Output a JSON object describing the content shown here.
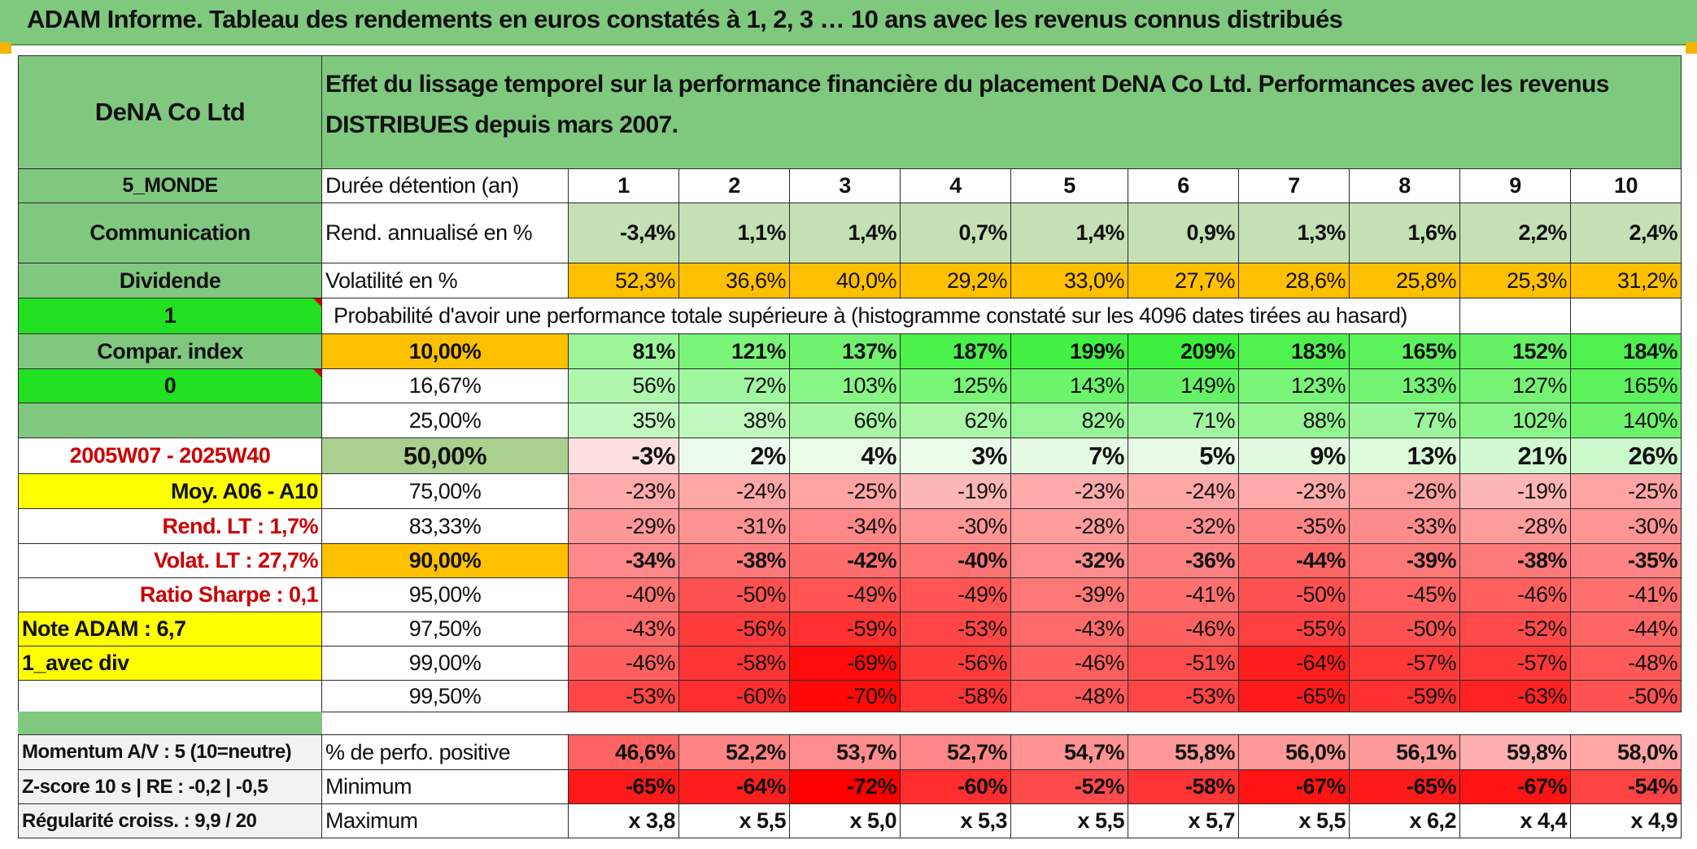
{
  "title": "ADAM Informe. Tableau des rendements en euros constatés à 1, 2, 3 … 10 ans avec les revenus connus distribués",
  "colors": {
    "header_green": "#7fc97f",
    "left_green": "#80c880",
    "bright_green": "#22e022",
    "yellow": "#ffff00",
    "orange": "#ffc000",
    "light_green_row": "#c5e0b4",
    "median_green": "#a9d08e",
    "label_red": "#cc0000"
  },
  "left_panel": {
    "company": "DeNA Co Ltd",
    "region": "5_MONDE",
    "sector": "Communication",
    "dividend_label": "Dividende",
    "dividend_value": "1",
    "compar_label": "Compar. index",
    "compar_value": "0",
    "period": "2005W07 - 2025W40",
    "moy": "Moy. A06 - A10",
    "rend_lt": "Rend. LT :   1,7%",
    "volat_lt": "Volat. LT :   27,7%",
    "sharpe": "Ratio Sharpe :    0,1",
    "note": "Note ADAM : 6,7",
    "avec_div": "1_avec div",
    "momentum": "Momentum A/V : 5 (10=neutre)",
    "zscore": "Z-score 10 s | RE : -0,2 | -0,5",
    "regularite": "Régularité croiss. : 9,9 / 20"
  },
  "header_description": "Effet du lissage temporel sur la performance financière du placement DeNA Co Ltd. Performances avec les revenus DISTRIBUES depuis mars 2007.",
  "duration_label": "Durée détention (an)",
  "durations": [
    "1",
    "2",
    "3",
    "4",
    "5",
    "6",
    "7",
    "8",
    "9",
    "10"
  ],
  "rend_label": "Rend. annualisé en %",
  "rend_values": [
    "-3,4%",
    "1,1%",
    "1,4%",
    "0,7%",
    "1,4%",
    "0,9%",
    "1,3%",
    "1,6%",
    "2,2%",
    "2,4%"
  ],
  "vol_label": "Volatilité en %",
  "vol_values": [
    "52,3%",
    "36,6%",
    "40,0%",
    "29,2%",
    "33,0%",
    "27,7%",
    "28,6%",
    "25,8%",
    "25,3%",
    "31,2%"
  ],
  "prob_label": "Probabilité d'avoir une performance totale supérieure à (histogramme constaté sur les 4096 dates tirées au hasard)",
  "percentile_rows": [
    {
      "p": "10,00%",
      "v": [
        "81%",
        "121%",
        "137%",
        "187%",
        "199%",
        "209%",
        "183%",
        "165%",
        "152%",
        "184%"
      ]
    },
    {
      "p": "16,67%",
      "v": [
        "56%",
        "72%",
        "103%",
        "125%",
        "143%",
        "149%",
        "123%",
        "133%",
        "127%",
        "165%"
      ]
    },
    {
      "p": "25,00%",
      "v": [
        "35%",
        "38%",
        "66%",
        "62%",
        "82%",
        "71%",
        "88%",
        "77%",
        "102%",
        "140%"
      ]
    },
    {
      "p": "50,00%",
      "v": [
        "-3%",
        "2%",
        "4%",
        "3%",
        "7%",
        "5%",
        "9%",
        "13%",
        "21%",
        "26%"
      ]
    },
    {
      "p": "75,00%",
      "v": [
        "-23%",
        "-24%",
        "-25%",
        "-19%",
        "-23%",
        "-24%",
        "-23%",
        "-26%",
        "-19%",
        "-25%"
      ]
    },
    {
      "p": "83,33%",
      "v": [
        "-29%",
        "-31%",
        "-34%",
        "-30%",
        "-28%",
        "-32%",
        "-35%",
        "-33%",
        "-28%",
        "-30%"
      ]
    },
    {
      "p": "90,00%",
      "v": [
        "-34%",
        "-38%",
        "-42%",
        "-40%",
        "-32%",
        "-36%",
        "-44%",
        "-39%",
        "-38%",
        "-35%"
      ]
    },
    {
      "p": "95,00%",
      "v": [
        "-40%",
        "-50%",
        "-49%",
        "-49%",
        "-39%",
        "-41%",
        "-50%",
        "-45%",
        "-46%",
        "-41%"
      ]
    },
    {
      "p": "97,50%",
      "v": [
        "-43%",
        "-56%",
        "-59%",
        "-53%",
        "-43%",
        "-46%",
        "-55%",
        "-50%",
        "-52%",
        "-44%"
      ]
    },
    {
      "p": "99,00%",
      "v": [
        "-46%",
        "-58%",
        "-69%",
        "-56%",
        "-46%",
        "-51%",
        "-64%",
        "-57%",
        "-57%",
        "-48%"
      ]
    },
    {
      "p": "99,50%",
      "v": [
        "-53%",
        "-60%",
        "-70%",
        "-58%",
        "-48%",
        "-53%",
        "-65%",
        "-59%",
        "-63%",
        "-50%"
      ]
    }
  ],
  "pos_label": "% de perfo. positive",
  "pos_values": [
    "46,6%",
    "52,2%",
    "53,7%",
    "52,7%",
    "54,7%",
    "55,8%",
    "56,0%",
    "56,1%",
    "59,8%",
    "58,0%"
  ],
  "min_label": "Minimum",
  "min_values": [
    "-65%",
    "-64%",
    "-72%",
    "-60%",
    "-52%",
    "-58%",
    "-67%",
    "-65%",
    "-67%",
    "-54%"
  ],
  "max_label": "Maximum",
  "max_values": [
    "x 3,8",
    "x 5,5",
    "x 5,0",
    "x 5,3",
    "x 5,5",
    "x 5,7",
    "x 5,5",
    "x 6,2",
    "x 4,4",
    "x 4,9"
  ]
}
